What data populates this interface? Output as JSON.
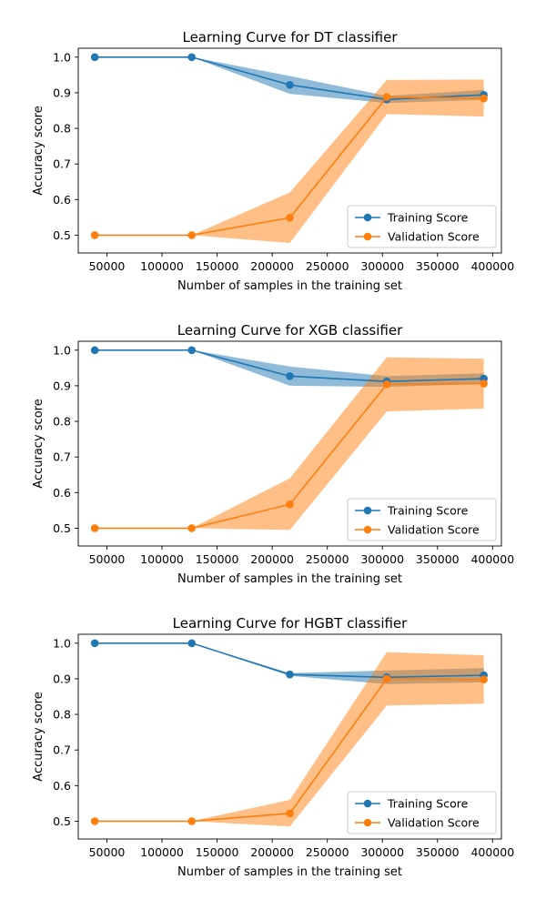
{
  "chart_data": [
    {
      "type": "line",
      "title": "Learning Curve for DT classifier",
      "xlabel": "Number of samples in the training set",
      "ylabel": "Accuracy score",
      "x": [
        39000,
        127000,
        216000,
        304000,
        392000
      ],
      "xlim": [
        24000,
        408000
      ],
      "ylim": [
        0.45,
        1.025
      ],
      "xticks": [
        50000,
        100000,
        150000,
        200000,
        250000,
        300000,
        350000,
        400000
      ],
      "xtick_labels": [
        "50000",
        "100000",
        "150000",
        "200000",
        "250000",
        "300000",
        "350000",
        "400000"
      ],
      "yticks": [
        0.5,
        0.6,
        0.7,
        0.8,
        0.9,
        1.0
      ],
      "ytick_labels": [
        "0.5",
        "0.6",
        "0.7",
        "0.8",
        "0.9",
        "1.0"
      ],
      "legend": "lower-right",
      "grid": false,
      "series": [
        {
          "name": "Training Score",
          "color": "#1f77b4",
          "values": [
            1.0,
            1.0,
            0.922,
            0.881,
            0.894
          ],
          "lower": [
            1.0,
            1.0,
            0.897,
            0.871,
            0.88
          ],
          "upper": [
            1.0,
            1.0,
            0.947,
            0.891,
            0.908
          ]
        },
        {
          "name": "Validation Score",
          "color": "#ff7f0e",
          "values": [
            0.5,
            0.5,
            0.549,
            0.888,
            0.884
          ],
          "lower": [
            0.5,
            0.5,
            0.478,
            0.84,
            0.833
          ],
          "upper": [
            0.5,
            0.5,
            0.62,
            0.936,
            0.937
          ]
        }
      ]
    },
    {
      "type": "line",
      "title": "Learning Curve for XGB classifier",
      "xlabel": "Number of samples in the training set",
      "ylabel": "Accuracy score",
      "x": [
        39000,
        127000,
        216000,
        304000,
        392000
      ],
      "xlim": [
        24000,
        408000
      ],
      "ylim": [
        0.45,
        1.025
      ],
      "xticks": [
        50000,
        100000,
        150000,
        200000,
        250000,
        300000,
        350000,
        400000
      ],
      "xtick_labels": [
        "50000",
        "100000",
        "150000",
        "200000",
        "250000",
        "300000",
        "350000",
        "400000"
      ],
      "yticks": [
        0.5,
        0.6,
        0.7,
        0.8,
        0.9,
        1.0
      ],
      "ytick_labels": [
        "0.5",
        "0.6",
        "0.7",
        "0.8",
        "0.9",
        "1.0"
      ],
      "legend": "lower-right",
      "grid": false,
      "series": [
        {
          "name": "Training Score",
          "color": "#1f77b4",
          "values": [
            1.0,
            1.0,
            0.927,
            0.912,
            0.92
          ],
          "lower": [
            1.0,
            1.0,
            0.9,
            0.897,
            0.905
          ],
          "upper": [
            1.0,
            1.0,
            0.954,
            0.927,
            0.935
          ]
        },
        {
          "name": "Validation Score",
          "color": "#ff7f0e",
          "values": [
            0.5,
            0.5,
            0.567,
            0.904,
            0.906
          ],
          "lower": [
            0.5,
            0.5,
            0.495,
            0.828,
            0.836
          ],
          "upper": [
            0.5,
            0.5,
            0.64,
            0.98,
            0.976
          ]
        }
      ]
    },
    {
      "type": "line",
      "title": "Learning Curve for HGBT classifier",
      "xlabel": "Number of samples in the training set",
      "ylabel": "Accuracy score",
      "x": [
        39000,
        127000,
        216000,
        304000,
        392000
      ],
      "xlim": [
        24000,
        408000
      ],
      "ylim": [
        0.45,
        1.025
      ],
      "xticks": [
        50000,
        100000,
        150000,
        200000,
        250000,
        300000,
        350000,
        400000
      ],
      "xtick_labels": [
        "50000",
        "100000",
        "150000",
        "200000",
        "250000",
        "300000",
        "350000",
        "400000"
      ],
      "yticks": [
        0.5,
        0.6,
        0.7,
        0.8,
        0.9,
        1.0
      ],
      "ytick_labels": [
        "0.5",
        "0.6",
        "0.7",
        "0.8",
        "0.9",
        "1.0"
      ],
      "legend": "lower-right",
      "grid": false,
      "series": [
        {
          "name": "Training Score",
          "color": "#1f77b4",
          "values": [
            1.0,
            1.0,
            0.912,
            0.904,
            0.91
          ],
          "lower": [
            1.0,
            1.0,
            0.908,
            0.885,
            0.89
          ],
          "upper": [
            1.0,
            1.0,
            0.916,
            0.923,
            0.93
          ]
        },
        {
          "name": "Validation Score",
          "color": "#ff7f0e",
          "values": [
            0.5,
            0.5,
            0.522,
            0.9,
            0.898
          ],
          "lower": [
            0.5,
            0.5,
            0.485,
            0.825,
            0.83
          ],
          "upper": [
            0.5,
            0.5,
            0.56,
            0.975,
            0.966
          ]
        }
      ]
    }
  ]
}
